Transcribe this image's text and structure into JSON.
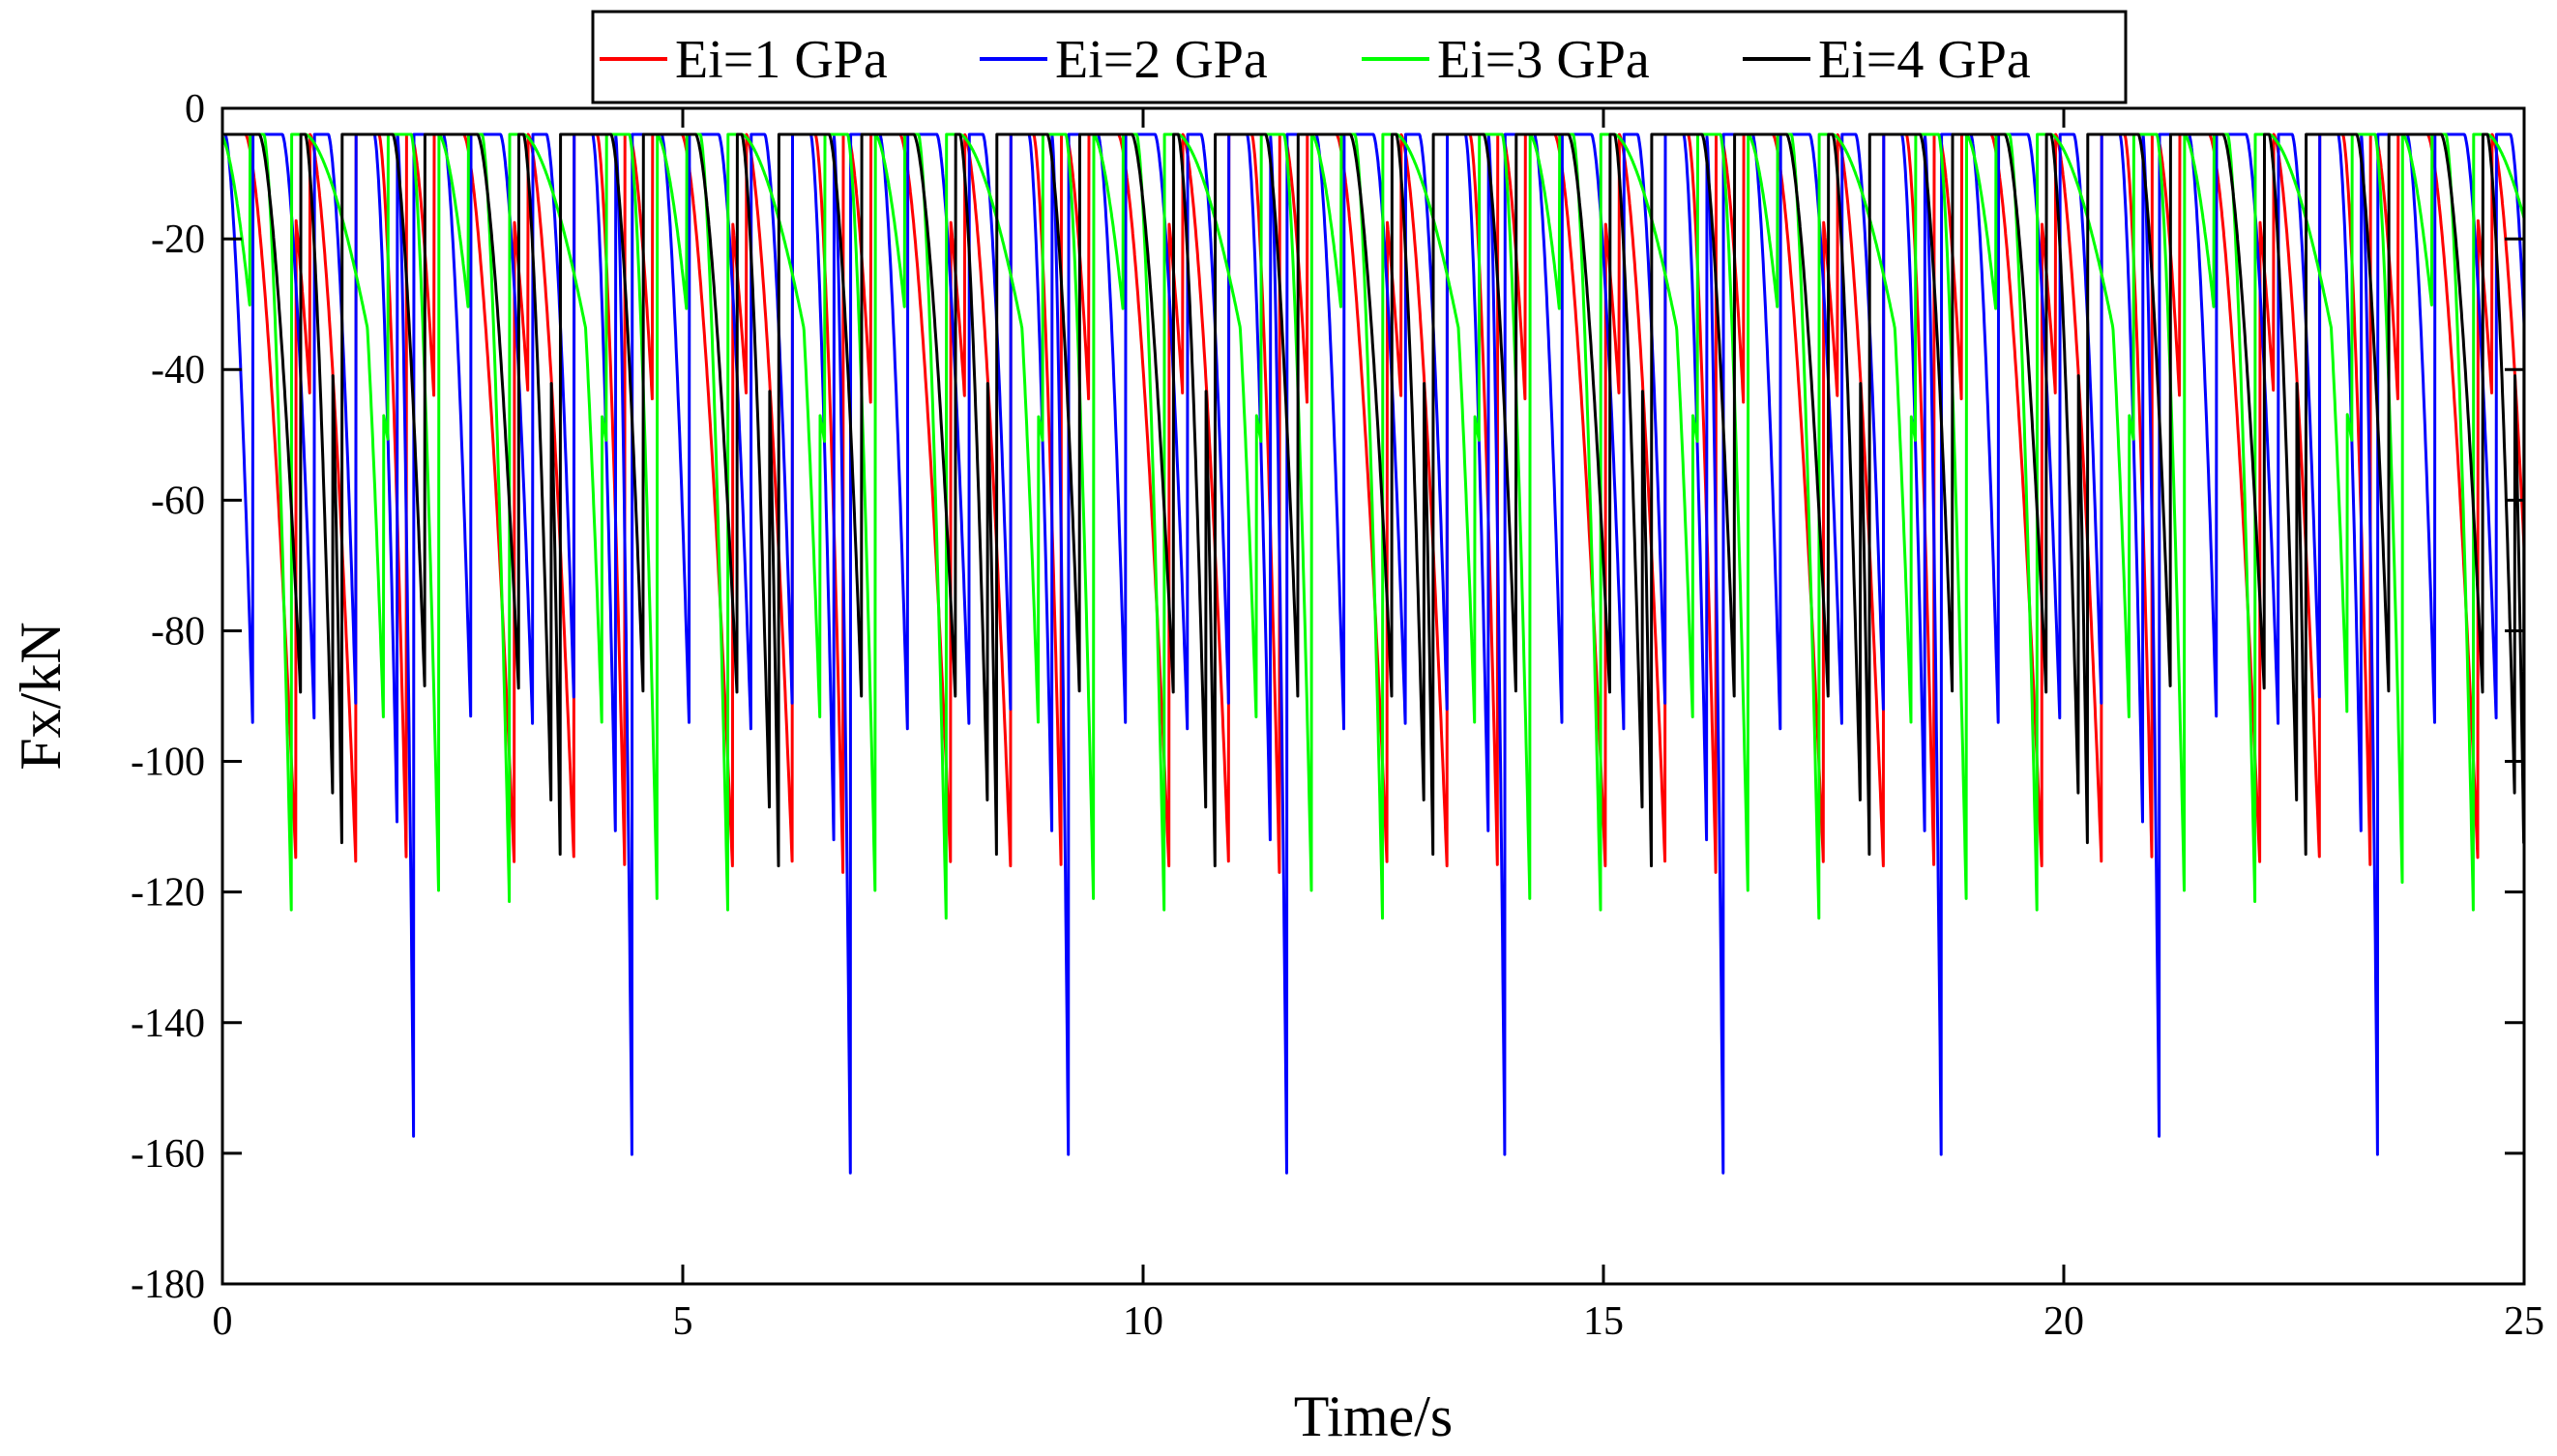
{
  "chart_data": {
    "type": "line",
    "title": "",
    "xlabel": "Time/s",
    "ylabel": "Fx/kN",
    "xlim": [
      0,
      25
    ],
    "ylim": [
      -180,
      0
    ],
    "xticks": [
      0,
      5,
      10,
      15,
      20,
      25
    ],
    "yticks": [
      0,
      -20,
      -40,
      -60,
      -80,
      -100,
      -120,
      -140,
      -160,
      -180
    ],
    "xtick_labels": [
      "0",
      "5",
      "10",
      "15",
      "20",
      "25"
    ],
    "ytick_labels": [
      "0",
      "-20",
      "-40",
      "-60",
      "-80",
      "-100",
      "-120",
      "-140",
      "-160",
      "-180"
    ],
    "grid": false,
    "legend_position": "top",
    "baseline_value": -4,
    "series": [
      {
        "name": "Ei=1 GPa",
        "color": "#ff0000",
        "period": 2.37,
        "phase": 0.1,
        "events": [
          {
            "t": 0.15,
            "peak": -116,
            "width": 0.55
          },
          {
            "t": 0.55,
            "peak": -44,
            "width": 0.3
          },
          {
            "t": 0.85,
            "peak": -116,
            "width": 0.5
          },
          {
            "t": 1.6,
            "peak": -117,
            "width": 0.3
          },
          {
            "t": 1.95,
            "peak": -45,
            "width": 0.25
          }
        ]
      },
      {
        "name": "Ei=2 GPa",
        "color": "#0000ff",
        "period": 2.37,
        "phase": 0.55,
        "events": [
          {
            "t": 0.1,
            "peak": -95,
            "width": 0.35
          },
          {
            "t": 0.6,
            "peak": -92,
            "width": 0.3
          },
          {
            "t": 1.1,
            "peak": -112,
            "width": 0.25
          },
          {
            "t": 1.35,
            "peak": -163,
            "width": 0.18
          },
          {
            "t": 1.85,
            "peak": -95,
            "width": 0.3
          }
        ]
      },
      {
        "name": "Ei=3 GPa",
        "color": "#00ff00",
        "period": 2.37,
        "phase": 0.3,
        "events": [
          {
            "t": 0.15,
            "peak": -124,
            "width": 0.3
          },
          {
            "t": 0.6,
            "peak": -51,
            "width": 0.9
          },
          {
            "t": 1.1,
            "peak": -94,
            "width": 0.35
          },
          {
            "t": 1.75,
            "peak": -121,
            "width": 0.3
          },
          {
            "t": 2.05,
            "peak": -50,
            "width": 0.45
          }
        ]
      },
      {
        "name": "Ei=4 GPa",
        "color": "#000000",
        "period": 2.37,
        "phase": 0.3,
        "events": [
          {
            "t": 0.1,
            "peak": -90,
            "width": 0.45
          },
          {
            "t": 0.6,
            "peak": -107,
            "width": 0.3
          },
          {
            "t": 0.8,
            "peak": -116,
            "width": 0.2
          },
          {
            "t": 1.55,
            "peak": -90,
            "width": 0.35
          }
        ]
      }
    ]
  }
}
